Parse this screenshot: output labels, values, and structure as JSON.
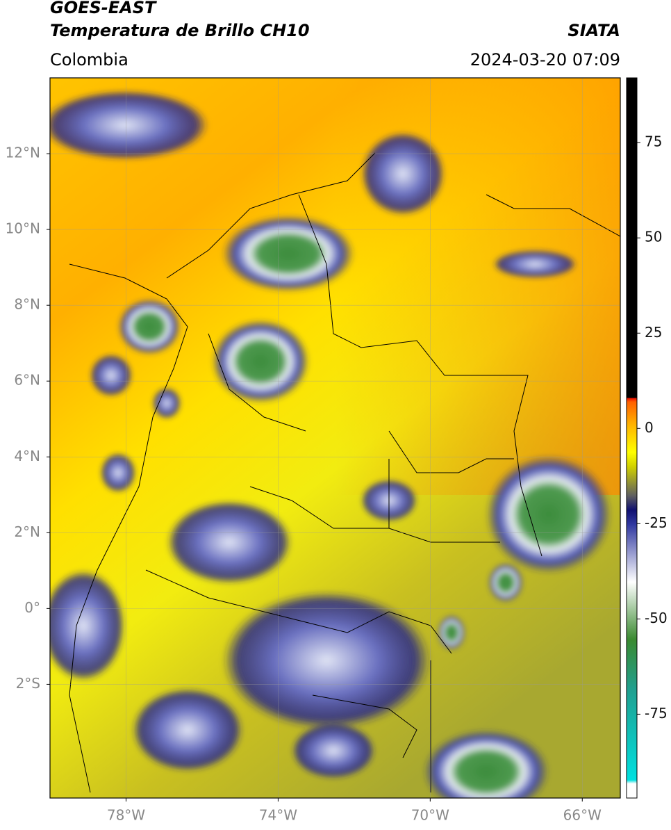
{
  "header": {
    "satellite": "GOES-EAST",
    "product": "Temperatura de Brillo CH10",
    "source": "SIATA",
    "region": "Colombia",
    "datetime": "2024-03-20 07:09"
  },
  "map": {
    "lonlim": [
      -80,
      -65
    ],
    "latlim": [
      -5,
      14
    ],
    "lat_ticks": [
      {
        "value": 12,
        "label": "12°N"
      },
      {
        "value": 10,
        "label": "10°N"
      },
      {
        "value": 8,
        "label": "8°N"
      },
      {
        "value": 6,
        "label": "6°N"
      },
      {
        "value": 4,
        "label": "4°N"
      },
      {
        "value": 2,
        "label": "2°N"
      },
      {
        "value": 0,
        "label": "0°"
      },
      {
        "value": -2,
        "label": "2°S"
      }
    ],
    "lon_ticks": [
      {
        "value": -78,
        "label": "78°W"
      },
      {
        "value": -74,
        "label": "74°W"
      },
      {
        "value": -70,
        "label": "70°W"
      },
      {
        "value": -66,
        "label": "66°W"
      }
    ]
  },
  "colorbar": {
    "lim": [
      -97,
      92
    ],
    "ticks": [
      75,
      50,
      25,
      0,
      -25,
      -50,
      -75
    ]
  }
}
